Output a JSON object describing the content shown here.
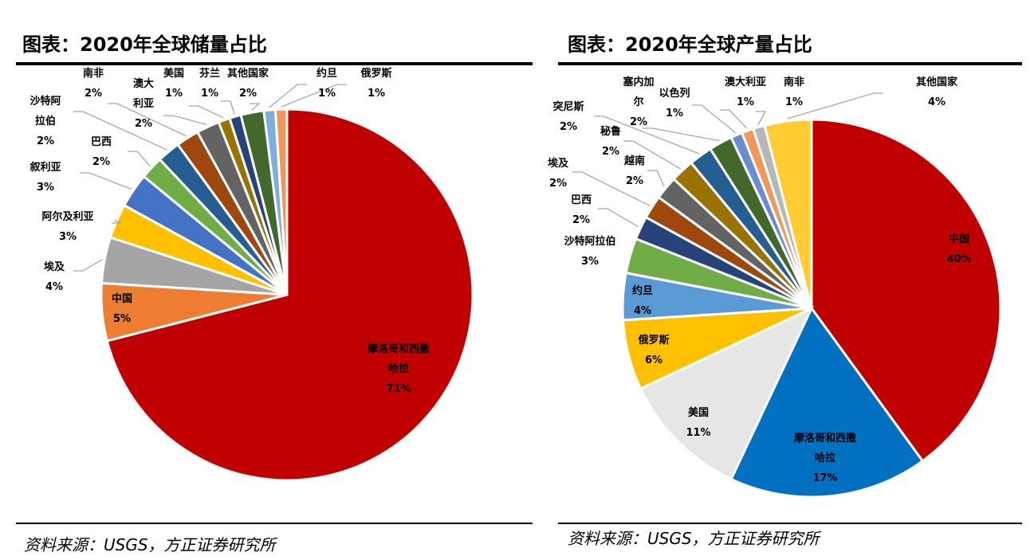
{
  "charts_titles": [
    "图表：2020年全球储量占比",
    "图表：2020年全球产量占比"
  ],
  "sources": [
    "资料来源：USGS，方正证券研究所",
    "资料来源：USGS，方正证券研究所"
  ],
  "chart_data": [
    {
      "type": "pie",
      "title": "图表：2020年全球储量占比",
      "start": "top",
      "direction": "clockwise",
      "slices": [
        {
          "label": "摩洛哥和西撒哈拉",
          "value": 71,
          "color": "#C00000"
        },
        {
          "label": "中国",
          "value": 5,
          "color": "#ED7D31"
        },
        {
          "label": "埃及",
          "value": 4,
          "color": "#A5A5A5"
        },
        {
          "label": "阿尔及利亚",
          "value": 3,
          "color": "#FFC000"
        },
        {
          "label": "叙利亚",
          "value": 3,
          "color": "#4472C4"
        },
        {
          "label": "巴西",
          "value": 2,
          "color": "#70AD47"
        },
        {
          "label": "沙特阿拉伯",
          "value": 2,
          "color": "#255E91"
        },
        {
          "label": "南非",
          "value": 2,
          "color": "#9E480E"
        },
        {
          "label": "澳大利亚",
          "value": 2,
          "color": "#636363"
        },
        {
          "label": "美国",
          "value": 1,
          "color": "#997300"
        },
        {
          "label": "芬兰",
          "value": 1,
          "color": "#264478"
        },
        {
          "label": "其他国家",
          "value": 2,
          "color": "#43682B"
        },
        {
          "label": "约旦",
          "value": 1,
          "color": "#7CAFDD"
        },
        {
          "label": "俄罗斯",
          "value": 1,
          "color": "#F1975A"
        }
      ]
    },
    {
      "type": "pie",
      "title": "图表：2020年全球产量占比",
      "start": "top",
      "direction": "clockwise",
      "slices": [
        {
          "label": "中国",
          "value": 40,
          "color": "#C00000"
        },
        {
          "label": "摩洛哥和西撒哈拉",
          "value": 17,
          "color": "#0070C0"
        },
        {
          "label": "美国",
          "value": 11,
          "color": "#E7E6E6"
        },
        {
          "label": "俄罗斯",
          "value": 6,
          "color": "#FFC000"
        },
        {
          "label": "约旦",
          "value": 4,
          "color": "#5B9BD5"
        },
        {
          "label": "沙特阿拉伯",
          "value": 3,
          "color": "#70AD47"
        },
        {
          "label": "巴西",
          "value": 2,
          "color": "#264478"
        },
        {
          "label": "埃及",
          "value": 2,
          "color": "#9E480E"
        },
        {
          "label": "越南",
          "value": 2,
          "color": "#636363"
        },
        {
          "label": "秘鲁",
          "value": 2,
          "color": "#997300"
        },
        {
          "label": "突尼斯",
          "value": 2,
          "color": "#255E91"
        },
        {
          "label": "塞内加尔",
          "value": 2,
          "color": "#43682B"
        },
        {
          "label": "以色列",
          "value": 1,
          "color": "#698ED0"
        },
        {
          "label": "澳大利亚",
          "value": 1,
          "color": "#F1975A"
        },
        {
          "label": "南非",
          "value": 1,
          "color": "#B7B7B7"
        },
        {
          "label": "其他国家",
          "value": 4,
          "color": "#FFCD33"
        }
      ]
    }
  ]
}
